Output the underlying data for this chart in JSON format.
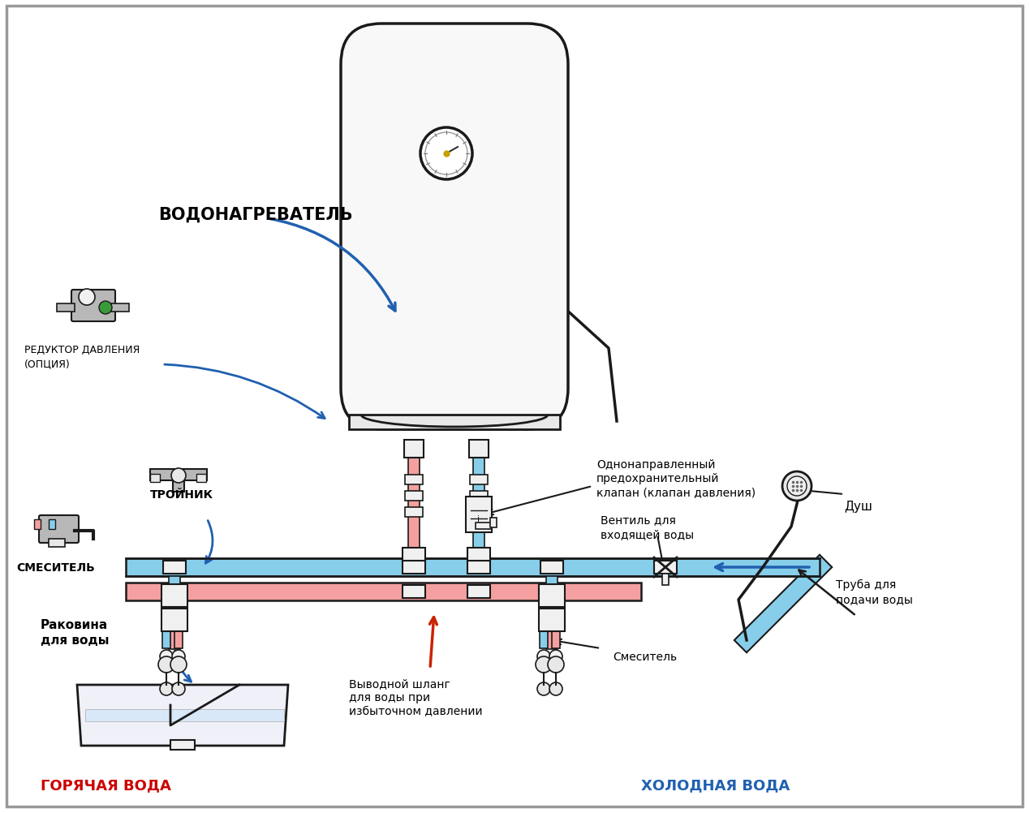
{
  "bg_color": "#ffffff",
  "labels": {
    "water_heater": "ВОДОНАГРЕВАТЕЛЬ",
    "pressure_reducer": "РЕДУКТОР ДАВЛЕНИЯ\n(ОПЦИЯ)",
    "tee": "ТРОЙНИК",
    "mixer_left": "СМЕСИТЕЛЬ",
    "check_valve": "Однонаправленный\nпредохранительный\nклапан (клапан давления)",
    "inlet_valve": "Вентиль для\nвходящей воды",
    "sink": "Раковина\nдля воды",
    "hot_water": "ГОРЯЧАЯ ВОДА",
    "cold_water": "ХОЛОДНАЯ ВОДА",
    "drain_hose": "Выводной шланг\nдля воды при\nизбыточном давлении",
    "shower": "Душ",
    "supply_pipe": "Труба для\nподачи воды",
    "mixer_right": "Смеситель"
  },
  "colors": {
    "hot_pipe": "#f4a0a0",
    "cold_pipe": "#87ceeb",
    "arrow_blue": "#2060b0",
    "arrow_red": "#cc2200",
    "outline": "#1a1a1a",
    "white": "#ffffff",
    "boiler_fill": "#f8f8f8",
    "light_gray": "#e8e8e8",
    "fitting_fill": "#f0f0f0",
    "gauge_gold": "#c8a000",
    "metal": "#b8b8b8"
  }
}
